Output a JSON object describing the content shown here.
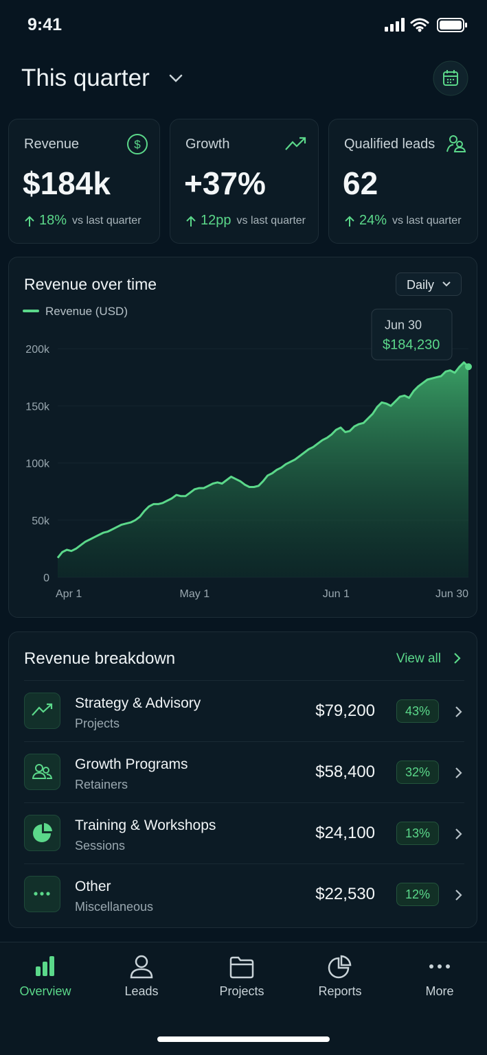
{
  "status_bar": {
    "time": "9:41"
  },
  "header": {
    "title": "This quarter"
  },
  "kpis": [
    {
      "label": "Revenue",
      "value": "$184k",
      "change": "18%",
      "change_label": "vs last quarter"
    },
    {
      "label": "Growth",
      "value": "+37%",
      "change": "12pp",
      "change_label": "vs last quarter"
    },
    {
      "label": "Qualified leads",
      "value": "62",
      "change": "24%",
      "change_label": "vs last quarter"
    }
  ],
  "chart_data": {
    "type": "area",
    "title": "Revenue over time",
    "period": "Daily",
    "categories": [
      "Apr 1",
      null,
      null,
      null,
      null,
      null,
      null,
      null,
      null,
      null,
      null,
      null,
      null,
      null,
      null,
      null,
      null,
      null,
      null,
      null,
      null,
      null,
      null,
      null,
      null,
      null,
      null,
      null,
      null,
      null,
      "May 1",
      null,
      null,
      null,
      null,
      null,
      null,
      null,
      null,
      null,
      null,
      null,
      null,
      null,
      null,
      null,
      null,
      null,
      null,
      null,
      null,
      null,
      null,
      null,
      null,
      null,
      null,
      null,
      null,
      null,
      null,
      "Jun 1",
      null,
      null,
      null,
      null,
      null,
      null,
      null,
      null,
      null,
      null,
      null,
      null,
      null,
      null,
      null,
      null,
      null,
      null,
      null,
      null,
      null,
      null,
      null,
      null,
      null,
      null,
      null,
      null,
      "Jun 30"
    ],
    "series": [
      {
        "name": "Revenue (USD)",
        "color": "#5bd88a",
        "values": [
          17000,
          22000,
          24000,
          23000,
          25000,
          28000,
          31000,
          33000,
          35000,
          37000,
          39000,
          40000,
          42000,
          44000,
          46000,
          47000,
          48000,
          50000,
          53000,
          58000,
          62000,
          64000,
          64000,
          65000,
          67000,
          69000,
          72000,
          71000,
          71000,
          74000,
          77000,
          78000,
          78000,
          80000,
          82000,
          83000,
          82000,
          85000,
          88000,
          86000,
          84000,
          81000,
          79000,
          79000,
          80000,
          84000,
          89000,
          91000,
          94000,
          96000,
          99000,
          101000,
          103000,
          106000,
          109000,
          112000,
          114000,
          117000,
          120000,
          122000,
          125000,
          129000,
          131000,
          127000,
          128000,
          132000,
          134000,
          135000,
          139000,
          143000,
          149000,
          153000,
          152000,
          150000,
          154000,
          158000,
          159000,
          157000,
          163000,
          167000,
          170000,
          173000,
          174000,
          175000,
          176000,
          180000,
          181000,
          179000,
          184000,
          188000,
          184230
        ]
      }
    ],
    "ylim": [
      0,
      200000
    ],
    "yticks": [
      0,
      {
        "value": 50000,
        "label": "50k"
      },
      {
        "value": 100000,
        "label": "100k"
      },
      {
        "value": 150000,
        "label": "150k"
      },
      {
        "value": 200000,
        "label": "200k"
      }
    ],
    "grid": true,
    "tooltip": {
      "label": "Jun 30",
      "value": "$184,230"
    }
  },
  "breakdown": {
    "title": "Revenue breakdown",
    "action": "View all",
    "items": [
      {
        "name": "Strategy & Advisory",
        "sub": "Projects",
        "amount": "$79,200",
        "share": "43%"
      },
      {
        "name": "Growth Programs",
        "sub": "Retainers",
        "amount": "$58,400",
        "share": "32%"
      },
      {
        "name": "Training & Workshops",
        "sub": "Sessions",
        "amount": "$24,100",
        "share": "13%"
      },
      {
        "name": "Other",
        "sub": "Miscellaneous",
        "amount": "$22,530",
        "share": "12%"
      }
    ]
  },
  "nav": {
    "items": [
      {
        "label": "Overview",
        "active": true
      },
      {
        "label": "Leads",
        "active": false
      },
      {
        "label": "Projects",
        "active": false
      },
      {
        "label": "Reports",
        "active": false
      },
      {
        "label": "More",
        "active": false
      }
    ]
  }
}
